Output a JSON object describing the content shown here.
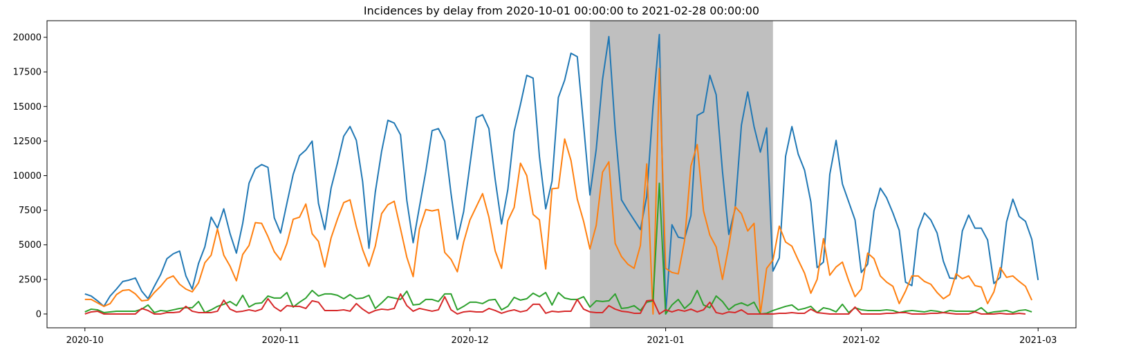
{
  "chart_data": {
    "type": "line",
    "title": "Incidences by delay from 2020-10-01 00:00:00 to 2021-02-28 00:00:00",
    "xlabel": "",
    "ylabel": "",
    "x_start": "2020-10-01",
    "x_step_days": 1,
    "xlim": [
      "2020-09-25",
      "2021-03-07"
    ],
    "ylim": [
      -1000,
      21200
    ],
    "x_ticks": [
      {
        "date": "2020-10-01",
        "label": "2020-10"
      },
      {
        "date": "2020-11-01",
        "label": "2020-11"
      },
      {
        "date": "2020-12-01",
        "label": "2020-12"
      },
      {
        "date": "2021-01-01",
        "label": "2021-01"
      },
      {
        "date": "2021-02-01",
        "label": "2021-02"
      },
      {
        "date": "2021-03-01",
        "label": "2021-03"
      }
    ],
    "y_ticks": [
      0,
      2500,
      5000,
      7500,
      10000,
      12500,
      15000,
      17500,
      20000
    ],
    "y_tick_labels": [
      "0",
      "2500",
      "5000",
      "7500",
      "10000",
      "12500",
      "15000",
      "17500",
      "20000"
    ],
    "shaded_region": {
      "from": "2020-12-20",
      "to": "2021-01-18",
      "color": "#808080"
    },
    "grid": false,
    "legend": "none",
    "series": [
      {
        "color": "#1f77b4",
        "values": [
          1450,
          1300,
          950,
          550,
          1300,
          1800,
          2350,
          2450,
          2600,
          1650,
          1100,
          2000,
          2850,
          4000,
          4350,
          4550,
          2750,
          1800,
          3650,
          4850,
          7000,
          6200,
          7600,
          5800,
          4400,
          6550,
          9450,
          10500,
          10800,
          10600,
          6950,
          5850,
          8000,
          10100,
          11450,
          11850,
          12500,
          8000,
          6100,
          9100,
          10900,
          12850,
          13550,
          12550,
          9550,
          4750,
          8800,
          11750,
          14000,
          13800,
          12950,
          8200,
          5150,
          7750,
          10300,
          13250,
          13400,
          12500,
          8700,
          5400,
          7400,
          10800,
          14200,
          14400,
          13400,
          9700,
          6500,
          9000,
          13200,
          15150,
          17250,
          17050,
          11400,
          7600,
          9600,
          15650,
          16900,
          18850,
          18600,
          13650,
          8600,
          11900,
          16950,
          20050,
          13350,
          8250,
          7500,
          6800,
          6100,
          8500,
          15000,
          20200,
          0,
          6450,
          5550,
          5450,
          7100,
          14350,
          14600,
          17250,
          15850,
          10300,
          5750,
          7600,
          13650,
          16050,
          13550,
          11700,
          13450,
          3100,
          4050,
          11400,
          13550,
          11550,
          10400,
          8100,
          3350,
          3750,
          10100,
          12550,
          9400,
          8100,
          6800,
          3000,
          3600,
          7450,
          9100,
          8400,
          7300,
          6050,
          2300,
          2050,
          6100,
          7300,
          6800,
          5850,
          3800,
          2600,
          2550,
          6000,
          7150,
          6200,
          6200,
          5350,
          2200,
          2650,
          6650,
          8300,
          7050,
          6700,
          5400,
          2450
        ]
      },
      {
        "color": "#ff7f0e",
        "values": [
          1050,
          1050,
          800,
          550,
          750,
          1400,
          1700,
          1750,
          1450,
          950,
          1000,
          1550,
          2000,
          2550,
          2750,
          2150,
          1800,
          1600,
          2250,
          3700,
          4250,
          6150,
          4250,
          3450,
          2400,
          4300,
          4950,
          6600,
          6550,
          5600,
          4500,
          3900,
          5100,
          6850,
          7000,
          7950,
          5800,
          5250,
          3400,
          5500,
          6850,
          8050,
          8250,
          6300,
          4650,
          3450,
          4900,
          7250,
          7900,
          8150,
          6150,
          4100,
          2700,
          6150,
          7550,
          7450,
          7550,
          4450,
          3950,
          3050,
          5200,
          6800,
          7750,
          8700,
          7000,
          4550,
          3300,
          6750,
          7700,
          10900,
          10000,
          7200,
          6800,
          3250,
          9050,
          9100,
          12650,
          11100,
          8300,
          6700,
          4700,
          6400,
          10250,
          11000,
          5100,
          4150,
          3600,
          3300,
          4950,
          10850,
          0,
          17750,
          3300,
          3000,
          2900,
          5300,
          10700,
          12250,
          7450,
          5700,
          4850,
          2500,
          4900,
          7750,
          7250,
          6000,
          6550,
          0,
          3300,
          3900,
          6350,
          5200,
          4900,
          3900,
          2950,
          1500,
          2500,
          5450,
          2800,
          3400,
          3750,
          2400,
          1250,
          1800,
          4400,
          4000,
          2750,
          2300,
          2000,
          750,
          1650,
          2750,
          2750,
          2350,
          2150,
          1550,
          1100,
          1400,
          2900,
          2550,
          2750,
          2050,
          1950,
          750,
          1600,
          3350,
          2650,
          2750,
          2350,
          2000,
          1000
        ]
      },
      {
        "color": "#2ca02c",
        "values": [
          150,
          350,
          300,
          100,
          150,
          200,
          200,
          200,
          200,
          350,
          650,
          100,
          250,
          200,
          300,
          400,
          450,
          450,
          900,
          100,
          300,
          550,
          700,
          900,
          600,
          1350,
          500,
          750,
          800,
          1300,
          1150,
          1150,
          1550,
          500,
          850,
          1150,
          1700,
          1300,
          1450,
          1450,
          1350,
          1100,
          1400,
          1100,
          1150,
          1350,
          400,
          800,
          1250,
          1150,
          1050,
          1650,
          650,
          700,
          1050,
          1050,
          900,
          1450,
          1450,
          300,
          550,
          850,
          850,
          750,
          1000,
          1050,
          300,
          550,
          1200,
          1000,
          1100,
          1500,
          1250,
          1550,
          650,
          1550,
          1150,
          1050,
          1050,
          1250,
          500,
          950,
          900,
          950,
          1450,
          400,
          450,
          600,
          250,
          850,
          950,
          9450,
          0,
          650,
          1050,
          400,
          800,
          1700,
          650,
          450,
          1300,
          900,
          300,
          650,
          800,
          600,
          850,
          0,
          50,
          250,
          400,
          550,
          650,
          300,
          400,
          550,
          100,
          450,
          350,
          150,
          700,
          100,
          450,
          300,
          250,
          250,
          250,
          300,
          250,
          100,
          200,
          250,
          200,
          150,
          250,
          200,
          100,
          250,
          200,
          200,
          200,
          200,
          450,
          50,
          150,
          200,
          250,
          100,
          250,
          300,
          150
        ]
      },
      {
        "color": "#d62728",
        "values": [
          0,
          150,
          200,
          0,
          0,
          0,
          0,
          0,
          0,
          400,
          250,
          0,
          0,
          100,
          100,
          150,
          550,
          200,
          100,
          100,
          100,
          200,
          1000,
          350,
          150,
          200,
          300,
          200,
          350,
          1100,
          500,
          200,
          600,
          550,
          550,
          400,
          950,
          850,
          250,
          250,
          250,
          300,
          200,
          750,
          350,
          50,
          250,
          350,
          300,
          400,
          1450,
          600,
          200,
          400,
          300,
          200,
          300,
          1250,
          300,
          0,
          150,
          200,
          150,
          150,
          400,
          250,
          50,
          200,
          300,
          150,
          250,
          700,
          700,
          50,
          200,
          150,
          200,
          200,
          1050,
          350,
          150,
          100,
          100,
          600,
          350,
          200,
          150,
          50,
          50,
          950,
          1000,
          0,
          300,
          150,
          300,
          200,
          350,
          150,
          300,
          850,
          100,
          0,
          150,
          100,
          300,
          0,
          0,
          0,
          0,
          0,
          50,
          50,
          100,
          50,
          50,
          350,
          100,
          50,
          0,
          0,
          0,
          0,
          500,
          0,
          0,
          0,
          0,
          50,
          50,
          100,
          100,
          0,
          0,
          0,
          50,
          50,
          100,
          50,
          0,
          0,
          0,
          150,
          0,
          0,
          0,
          50,
          0,
          0,
          50,
          0
        ]
      }
    ]
  }
}
